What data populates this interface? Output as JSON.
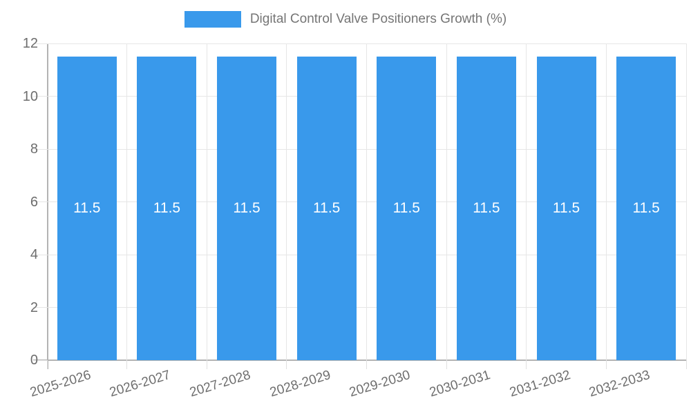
{
  "legend": {
    "label": "Digital Control Valve Positioners Growth (%)"
  },
  "colors": {
    "bar": "#3999EB",
    "grid": "#e6e6e6",
    "axis": "#b3b3b3",
    "tick_text": "#6d6d6d",
    "legend_text": "#757575",
    "bar_value_text": "#ffffff"
  },
  "chart_data": {
    "type": "bar",
    "title": "Digital Control Valve Positioners Growth (%)",
    "categories": [
      "2025-2026",
      "2026-2027",
      "2027-2028",
      "2028-2029",
      "2029-2030",
      "2030-2031",
      "2031-2032",
      "2032-2033"
    ],
    "values": [
      11.5,
      11.5,
      11.5,
      11.5,
      11.5,
      11.5,
      11.5,
      11.5
    ],
    "bar_labels": [
      "11.5",
      "11.5",
      "11.5",
      "11.5",
      "11.5",
      "11.5",
      "11.5",
      "11.5"
    ],
    "xlabel": "",
    "ylabel": "",
    "ylim": [
      0,
      12
    ],
    "yticks": [
      0,
      2,
      4,
      6,
      8,
      10,
      12
    ],
    "grid": true,
    "legend_position": "top-center",
    "x_label_rotation_deg": -17
  }
}
